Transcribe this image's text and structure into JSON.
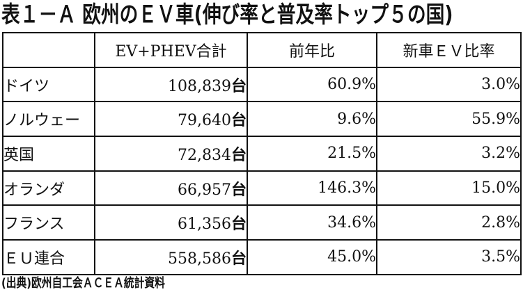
{
  "title": "表１－Ａ 欧州のＥＶ車(伸び率と普及率トップ５の国)",
  "table": {
    "headers": [
      "",
      "EV+PHEV合計",
      "前年比",
      "新車ＥＶ比率"
    ],
    "rows": [
      {
        "country": "ドイツ",
        "ev": "108,839",
        "unit": "台",
        "yoy": "60.9%",
        "share": "3.0%"
      },
      {
        "country": "ノルウェー",
        "ev": "79,640",
        "unit": "台",
        "yoy": "9.6%",
        "share": "55.9%"
      },
      {
        "country": "英国",
        "ev": "72,834",
        "unit": "台",
        "yoy": "21.5%",
        "share": "3.2%"
      },
      {
        "country": "オランダ",
        "ev": "66,957",
        "unit": "台",
        "yoy": "146.3%",
        "share": "15.0%"
      },
      {
        "country": "フランス",
        "ev": "61,356",
        "unit": "台",
        "yoy": "34.6%",
        "share": "2.8%"
      },
      {
        "country": "ＥＵ連合",
        "ev": "558,586",
        "unit": "台",
        "yoy": "45.0%",
        "share": "3.5%"
      }
    ]
  },
  "source": "(出典)欧州自工会ＡＣＥＡ統計資料"
}
